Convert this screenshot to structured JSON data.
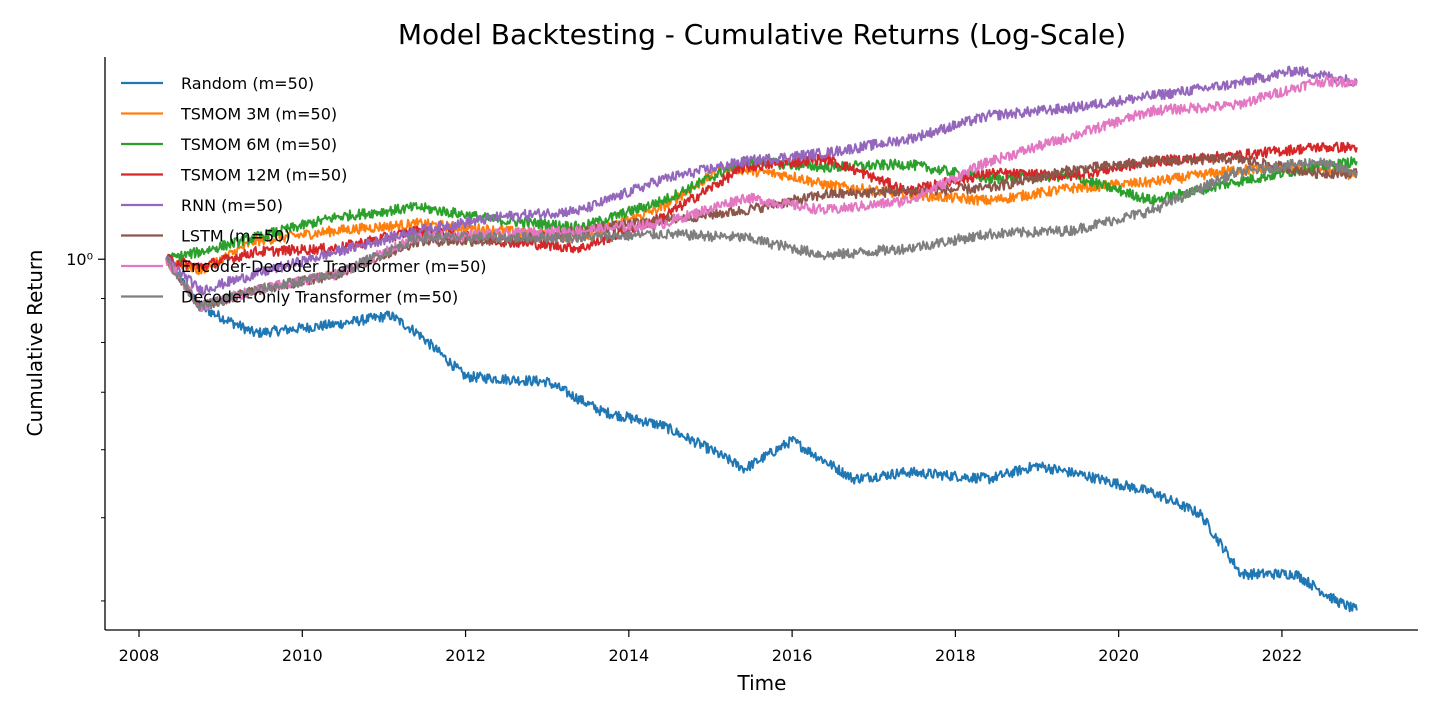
{
  "chart_data": {
    "type": "line",
    "title": "Model Backtesting - Cumulative Returns (Log-Scale)",
    "xlabel": "Time",
    "ylabel": "Cumulative Return",
    "y_scale": "log",
    "xlim": [
      "2007-08",
      "2023-09"
    ],
    "ylim": [
      0.37,
      1.72
    ],
    "x_ticks": [
      "2008",
      "2010",
      "2012",
      "2014",
      "2016",
      "2018",
      "2020",
      "2022"
    ],
    "y_tick_label": "10⁰",
    "grid": false,
    "legend_position": "top-left",
    "series": [
      {
        "name": "Random (m=50)",
        "color": "#1f77b4",
        "points": [
          [
            "2008-05",
            1.0
          ],
          [
            "2008-10",
            0.88
          ],
          [
            "2009-06",
            0.82
          ],
          [
            "2010-06",
            0.84
          ],
          [
            "2011-02",
            0.86
          ],
          [
            "2011-06",
            0.82
          ],
          [
            "2012-01",
            0.73
          ],
          [
            "2013-01",
            0.72
          ],
          [
            "2013-09",
            0.665
          ],
          [
            "2014-06",
            0.64
          ],
          [
            "2015-01",
            0.6
          ],
          [
            "2015-06",
            0.57
          ],
          [
            "2016-01",
            0.615
          ],
          [
            "2016-10",
            0.555
          ],
          [
            "2017-06",
            0.565
          ],
          [
            "2018-06",
            0.555
          ],
          [
            "2019-01",
            0.575
          ],
          [
            "2019-08",
            0.56
          ],
          [
            "2020-06",
            0.535
          ],
          [
            "2021-01",
            0.505
          ],
          [
            "2021-07",
            0.43
          ],
          [
            "2022-03",
            0.43
          ],
          [
            "2022-09",
            0.4
          ],
          [
            "2022-12",
            0.39
          ]
        ]
      },
      {
        "name": "TSMOM 3M (m=50)",
        "color": "#ff7f0e",
        "points": [
          [
            "2008-05",
            1.0
          ],
          [
            "2008-10",
            0.97
          ],
          [
            "2009-06",
            1.05
          ],
          [
            "2010-06",
            1.08
          ],
          [
            "2011-06",
            1.1
          ],
          [
            "2012-06",
            1.08
          ],
          [
            "2013-06",
            1.06
          ],
          [
            "2014-06",
            1.15
          ],
          [
            "2015-03",
            1.28
          ],
          [
            "2016-01",
            1.25
          ],
          [
            "2016-06",
            1.22
          ],
          [
            "2017-06",
            1.19
          ],
          [
            "2018-06",
            1.17
          ],
          [
            "2019-06",
            1.21
          ],
          [
            "2020-06",
            1.23
          ],
          [
            "2021-06",
            1.27
          ],
          [
            "2022-06",
            1.28
          ],
          [
            "2022-12",
            1.25
          ]
        ]
      },
      {
        "name": "TSMOM 6M (m=50)",
        "color": "#2ca02c",
        "points": [
          [
            "2008-05",
            1.0
          ],
          [
            "2008-10",
            1.02
          ],
          [
            "2009-06",
            1.06
          ],
          [
            "2010-06",
            1.12
          ],
          [
            "2011-06",
            1.15
          ],
          [
            "2012-06",
            1.11
          ],
          [
            "2013-06",
            1.09
          ],
          [
            "2014-06",
            1.17
          ],
          [
            "2015-06",
            1.3
          ],
          [
            "2016-06",
            1.28
          ],
          [
            "2017-06",
            1.29
          ],
          [
            "2018-06",
            1.24
          ],
          [
            "2019-06",
            1.25
          ],
          [
            "2020-06",
            1.17
          ],
          [
            "2021-06",
            1.23
          ],
          [
            "2022-06",
            1.28
          ],
          [
            "2022-12",
            1.3
          ]
        ]
      },
      {
        "name": "TSMOM 12M (m=50)",
        "color": "#d62728",
        "points": [
          [
            "2008-05",
            1.0
          ],
          [
            "2008-10",
            0.98
          ],
          [
            "2009-06",
            1.02
          ],
          [
            "2010-06",
            1.03
          ],
          [
            "2011-06",
            1.08
          ],
          [
            "2012-06",
            1.05
          ],
          [
            "2013-06",
            1.03
          ],
          [
            "2014-06",
            1.12
          ],
          [
            "2015-06",
            1.28
          ],
          [
            "2016-06",
            1.31
          ],
          [
            "2017-06",
            1.2
          ],
          [
            "2018-06",
            1.26
          ],
          [
            "2019-06",
            1.25
          ],
          [
            "2020-06",
            1.3
          ],
          [
            "2021-06",
            1.32
          ],
          [
            "2022-06",
            1.35
          ],
          [
            "2022-12",
            1.35
          ]
        ]
      },
      {
        "name": "RNN (m=50)",
        "color": "#9467bd",
        "points": [
          [
            "2008-05",
            1.0
          ],
          [
            "2008-10",
            0.92
          ],
          [
            "2009-06",
            0.96
          ],
          [
            "2010-06",
            1.02
          ],
          [
            "2011-06",
            1.08
          ],
          [
            "2012-06",
            1.12
          ],
          [
            "2013-06",
            1.14
          ],
          [
            "2014-06",
            1.24
          ],
          [
            "2015-06",
            1.3
          ],
          [
            "2016-06",
            1.33
          ],
          [
            "2017-06",
            1.38
          ],
          [
            "2018-06",
            1.47
          ],
          [
            "2019-06",
            1.5
          ],
          [
            "2020-06",
            1.55
          ],
          [
            "2021-06",
            1.6
          ],
          [
            "2022-03",
            1.66
          ],
          [
            "2022-12",
            1.61
          ]
        ]
      },
      {
        "name": "LSTM (m=50)",
        "color": "#8c564b",
        "points": [
          [
            "2008-05",
            1.0
          ],
          [
            "2008-10",
            0.88
          ],
          [
            "2009-06",
            0.92
          ],
          [
            "2010-06",
            0.96
          ],
          [
            "2011-06",
            1.05
          ],
          [
            "2012-06",
            1.05
          ],
          [
            "2013-06",
            1.08
          ],
          [
            "2014-06",
            1.11
          ],
          [
            "2015-06",
            1.14
          ],
          [
            "2016-06",
            1.19
          ],
          [
            "2017-06",
            1.2
          ],
          [
            "2018-06",
            1.21
          ],
          [
            "2019-06",
            1.27
          ],
          [
            "2020-06",
            1.3
          ],
          [
            "2021-06",
            1.31
          ],
          [
            "2022-06",
            1.26
          ],
          [
            "2022-12",
            1.26
          ]
        ]
      },
      {
        "name": "Encoder-Decoder Transformer (m=50)",
        "color": "#e377c2",
        "points": [
          [
            "2008-05",
            1.0
          ],
          [
            "2008-10",
            0.88
          ],
          [
            "2009-06",
            0.92
          ],
          [
            "2010-06",
            0.96
          ],
          [
            "2011-06",
            1.06
          ],
          [
            "2012-06",
            1.07
          ],
          [
            "2013-06",
            1.08
          ],
          [
            "2014-06",
            1.1
          ],
          [
            "2015-06",
            1.18
          ],
          [
            "2016-06",
            1.14
          ],
          [
            "2017-06",
            1.17
          ],
          [
            "2018-06",
            1.3
          ],
          [
            "2019-06",
            1.39
          ],
          [
            "2020-06",
            1.49
          ],
          [
            "2021-06",
            1.51
          ],
          [
            "2022-06",
            1.61
          ],
          [
            "2022-12",
            1.61
          ]
        ]
      },
      {
        "name": "Decoder-Only Transformer (m=50)",
        "color": "#7f7f7f",
        "points": [
          [
            "2008-05",
            1.0
          ],
          [
            "2008-10",
            0.88
          ],
          [
            "2009-06",
            0.92
          ],
          [
            "2010-06",
            0.96
          ],
          [
            "2011-06",
            1.06
          ],
          [
            "2012-06",
            1.06
          ],
          [
            "2013-06",
            1.06
          ],
          [
            "2014-06",
            1.07
          ],
          [
            "2015-06",
            1.06
          ],
          [
            "2016-06",
            1.01
          ],
          [
            "2017-06",
            1.03
          ],
          [
            "2018-06",
            1.07
          ],
          [
            "2019-06",
            1.08
          ],
          [
            "2020-06",
            1.14
          ],
          [
            "2021-06",
            1.26
          ],
          [
            "2022-06",
            1.3
          ],
          [
            "2022-12",
            1.26
          ]
        ]
      }
    ]
  }
}
